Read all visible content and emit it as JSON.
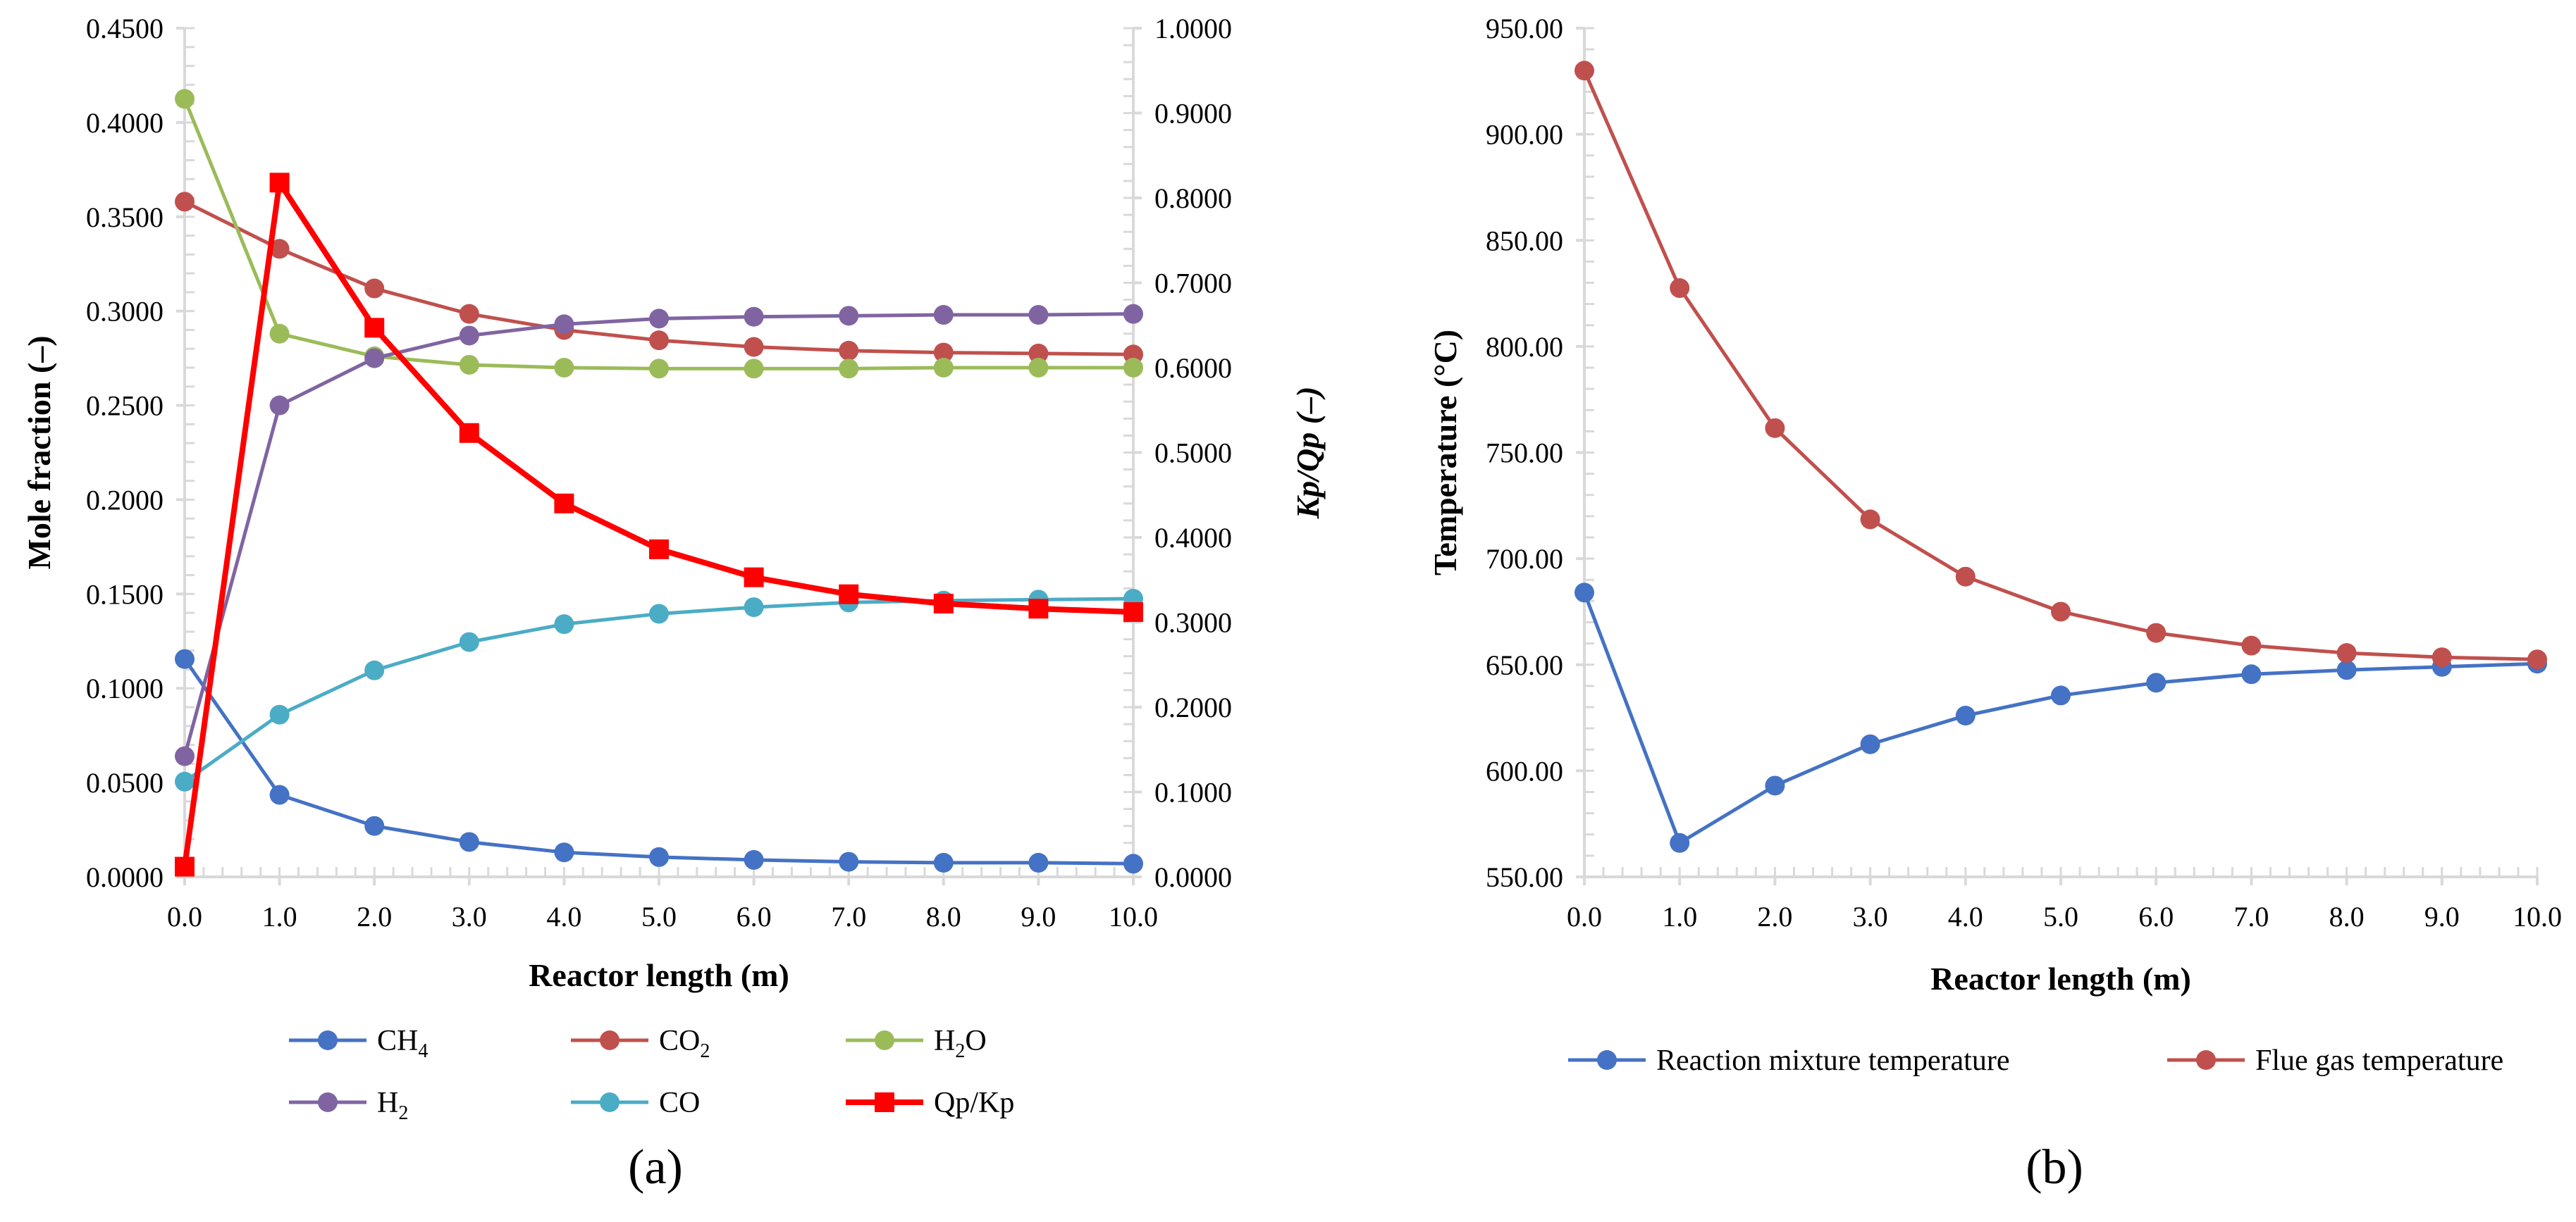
{
  "chart_data": [
    {
      "panel_label": "(a)",
      "type": "line",
      "x": [
        0.0,
        1.0,
        2.0,
        3.0,
        4.0,
        5.0,
        6.0,
        7.0,
        8.0,
        9.0,
        10.0
      ],
      "xlabel": "Reactor length (m)",
      "ylabel": "Mole fraction (–)",
      "y2label": "Kp/Qp (–)",
      "xlim": [
        0,
        10
      ],
      "ylim": [
        0,
        0.45
      ],
      "y2lim": [
        0,
        1.0
      ],
      "x_ticks": [
        "0.0",
        "1.0",
        "2.0",
        "3.0",
        "4.0",
        "5.0",
        "6.0",
        "7.0",
        "8.0",
        "9.0",
        "10.0"
      ],
      "y_ticks": [
        "0.0000",
        "0.0500",
        "0.1000",
        "0.1500",
        "0.2000",
        "0.2500",
        "0.3000",
        "0.3500",
        "0.4000",
        "0.4500"
      ],
      "y2_ticks": [
        "0.0000",
        "0.1000",
        "0.2000",
        "0.3000",
        "0.4000",
        "0.5000",
        "0.6000",
        "0.7000",
        "0.8000",
        "0.9000",
        "1.0000"
      ],
      "legend_position": "bottom",
      "series": [
        {
          "name": "CH4",
          "label_main": "CH",
          "label_sub": "4",
          "color": "#4472C4",
          "marker": "circle",
          "axis": "left",
          "values": [
            0.1155,
            0.0435,
            0.027,
            0.0185,
            0.013,
            0.0105,
            0.009,
            0.008,
            0.0075,
            0.0075,
            0.007
          ]
        },
        {
          "name": "CO2",
          "label_main": "CO",
          "label_sub": "2",
          "color": "#C0504D",
          "marker": "circle",
          "axis": "left",
          "values": [
            0.358,
            0.333,
            0.312,
            0.2985,
            0.29,
            0.2845,
            0.281,
            0.279,
            0.278,
            0.2775,
            0.277
          ]
        },
        {
          "name": "H2O",
          "label_main": "H",
          "label_sub": "2",
          "label_tail": "O",
          "color": "#9BBB59",
          "marker": "circle",
          "axis": "left",
          "values": [
            0.4125,
            0.288,
            0.276,
            0.2715,
            0.27,
            0.2695,
            0.2695,
            0.2695,
            0.27,
            0.27,
            0.27
          ]
        },
        {
          "name": "H2",
          "label_main": "H",
          "label_sub": "2",
          "color": "#8064A2",
          "marker": "circle",
          "axis": "left",
          "values": [
            0.064,
            0.25,
            0.275,
            0.287,
            0.293,
            0.296,
            0.297,
            0.2975,
            0.298,
            0.298,
            0.2985
          ]
        },
        {
          "name": "CO",
          "label_main": "CO",
          "color": "#4BACC6",
          "marker": "circle",
          "axis": "left",
          "values": [
            0.0505,
            0.086,
            0.1095,
            0.1245,
            0.134,
            0.1395,
            0.143,
            0.1455,
            0.1465,
            0.147,
            0.1475
          ]
        },
        {
          "name": "Qp/Kp",
          "label_main": "Qp/Kp",
          "color": "#FF0000",
          "marker": "square",
          "axis": "right",
          "values": [
            0.012,
            0.818,
            0.647,
            0.523,
            0.44,
            0.386,
            0.353,
            0.333,
            0.322,
            0.316,
            0.312
          ]
        }
      ]
    },
    {
      "panel_label": "(b)",
      "type": "line",
      "x": [
        0.0,
        1.0,
        2.0,
        3.0,
        4.0,
        5.0,
        6.0,
        7.0,
        8.0,
        9.0,
        10.0
      ],
      "xlabel": "Reactor length (m)",
      "ylabel": "Temperature (°C)",
      "xlim": [
        0,
        10
      ],
      "ylim": [
        550,
        950
      ],
      "x_ticks": [
        "0.0",
        "1.0",
        "2.0",
        "3.0",
        "4.0",
        "5.0",
        "6.0",
        "7.0",
        "8.0",
        "9.0",
        "10.0"
      ],
      "y_ticks": [
        "550.00",
        "600.00",
        "650.00",
        "700.00",
        "750.00",
        "800.00",
        "850.00",
        "900.00",
        "950.00"
      ],
      "legend_position": "bottom",
      "series": [
        {
          "name": "Reaction mixture temperature",
          "label_main": "Reaction mixture temperature",
          "color": "#4472C4",
          "marker": "circle",
          "values": [
            684,
            566,
            593,
            612.5,
            626,
            635.5,
            641.5,
            645.5,
            647.5,
            649,
            650.5
          ]
        },
        {
          "name": "Flue gas temperature",
          "label_main": "Flue gas temperature",
          "color": "#C0504D",
          "marker": "circle",
          "values": [
            930,
            827.5,
            761.5,
            718.5,
            691.5,
            675,
            665,
            659,
            655.5,
            653.5,
            652.5
          ]
        }
      ]
    }
  ]
}
